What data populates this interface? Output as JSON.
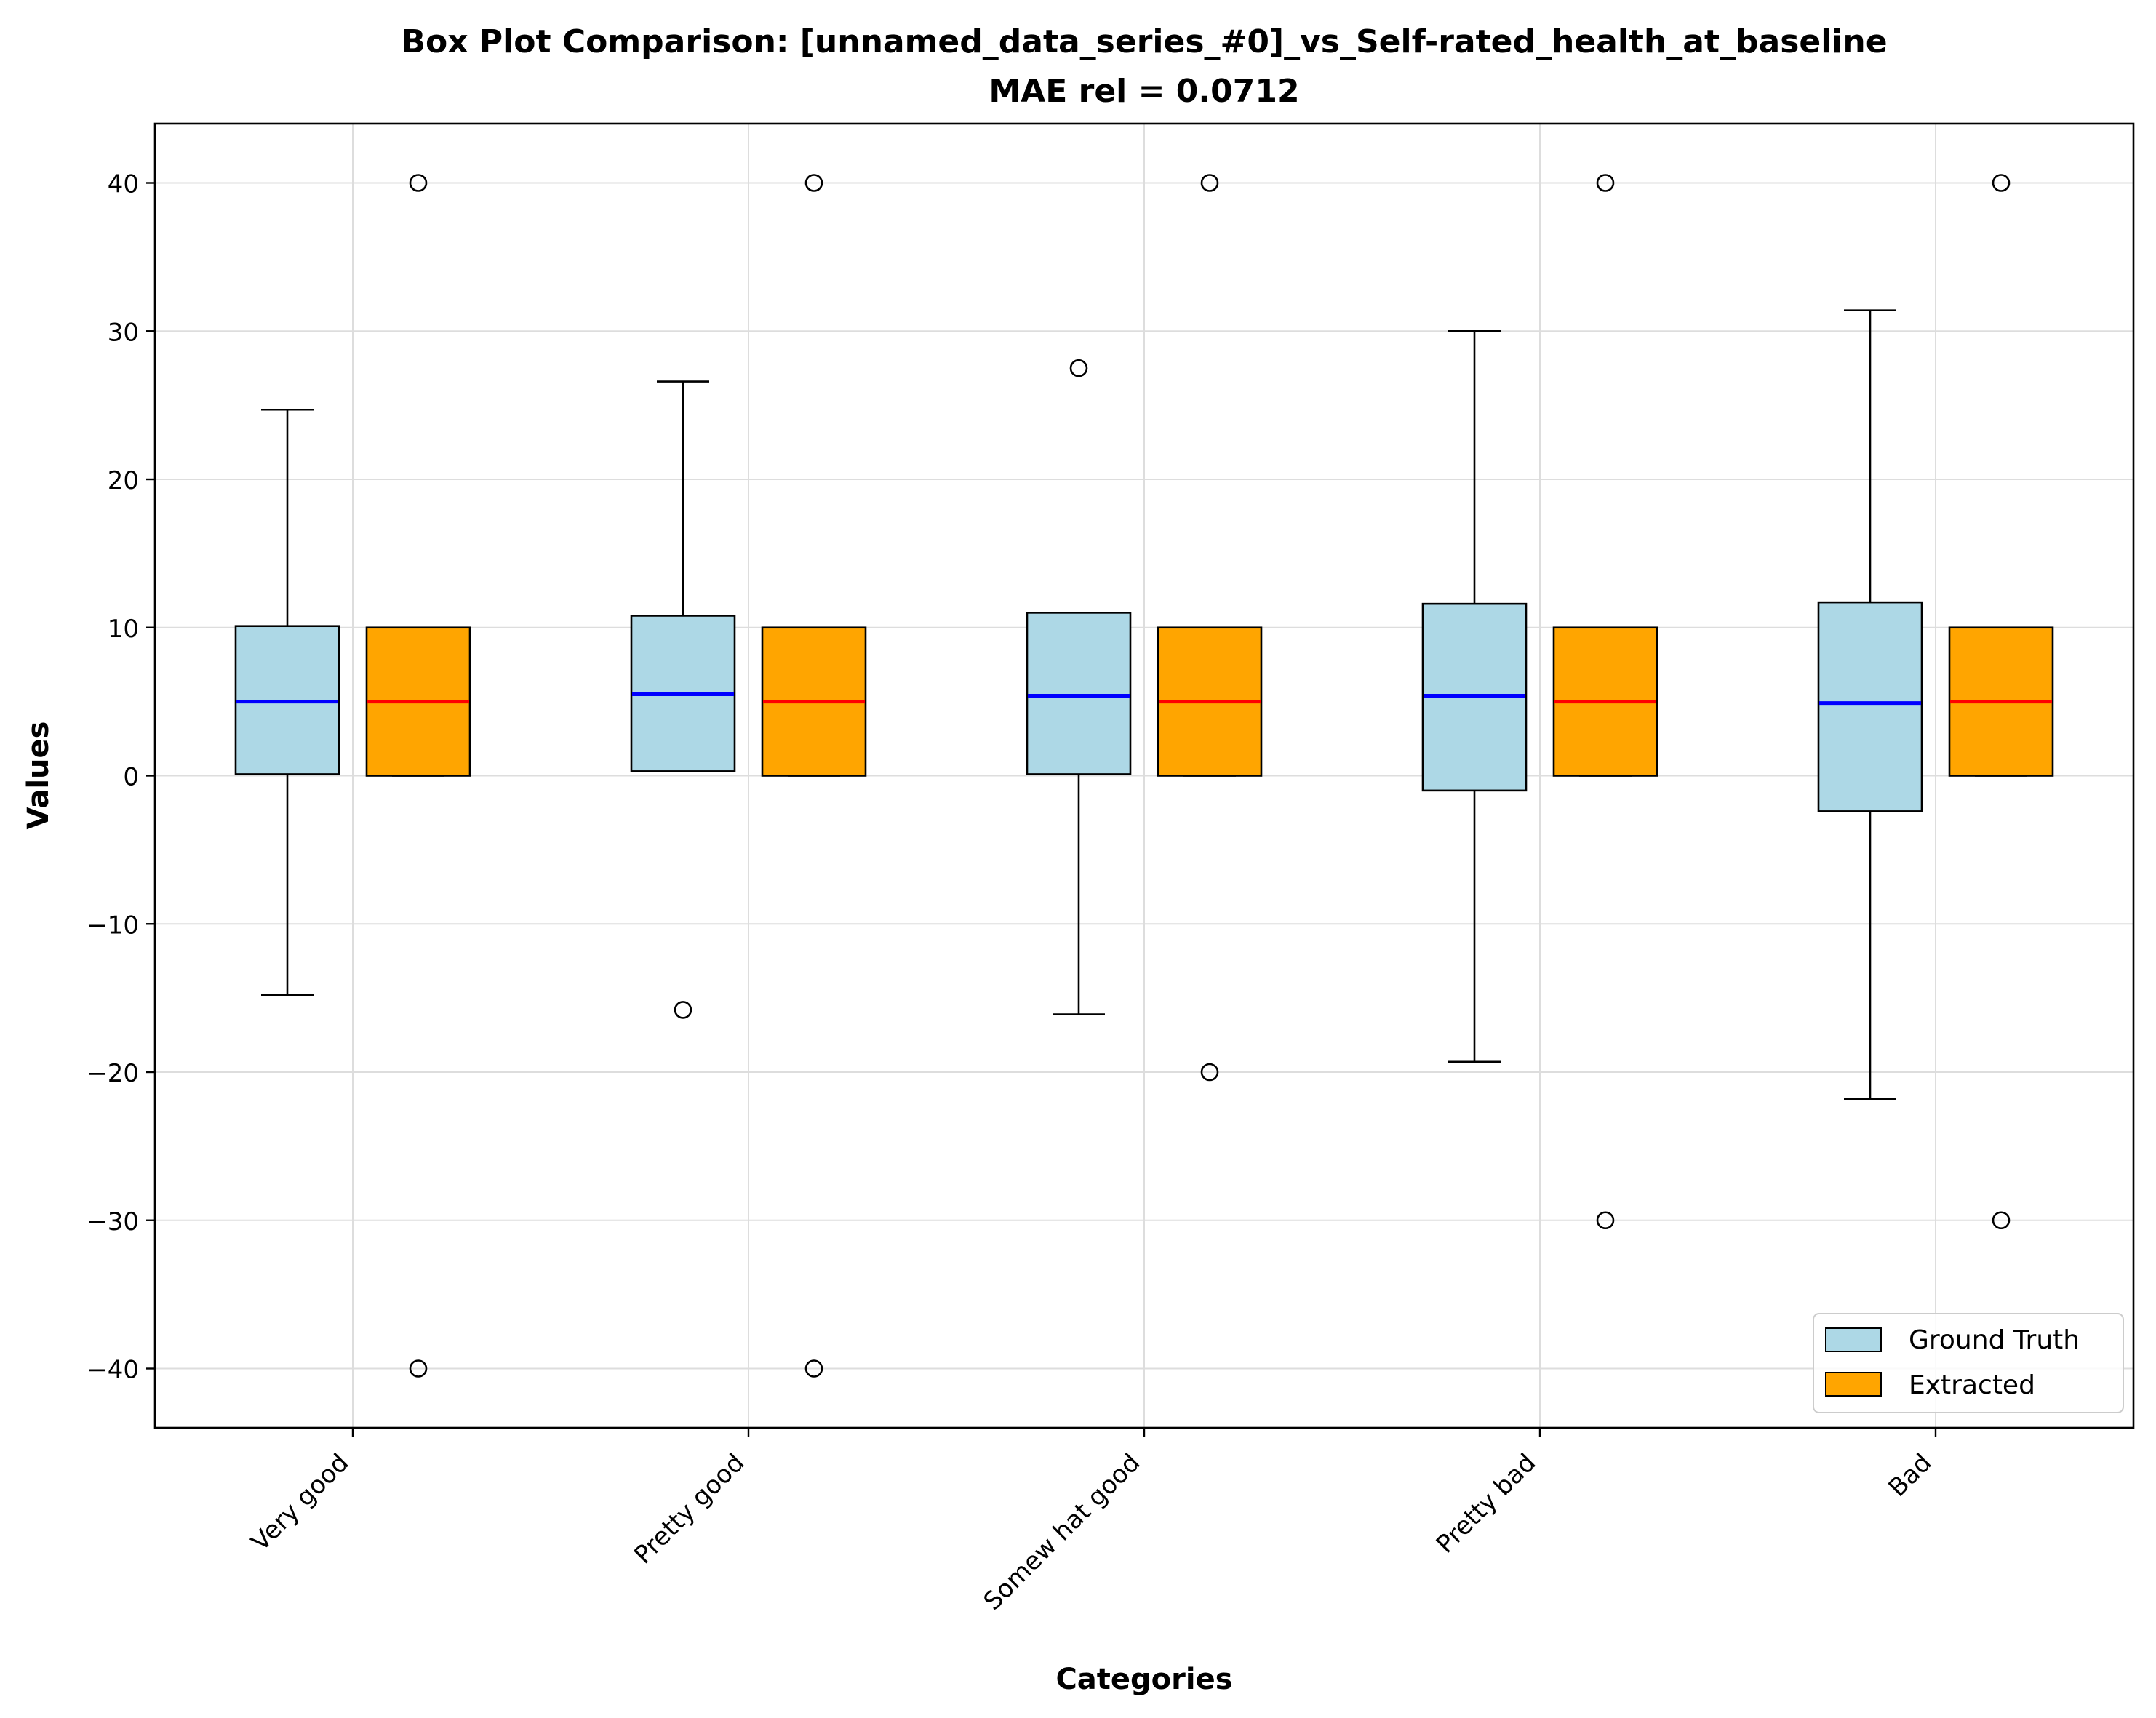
{
  "chart_data": {
    "type": "box",
    "title_line1": "Box Plot Comparison: [unnamed_data_series_#0]_vs_Self-rated_health_at_baseline",
    "title_line2": "MAE rel = 0.0712",
    "xlabel": "Categories",
    "ylabel": "Values",
    "ylim": [
      -44,
      44
    ],
    "yticks": [
      -40,
      -30,
      -20,
      -10,
      0,
      10,
      20,
      30,
      40
    ],
    "ytick_labels": [
      "−40",
      "−30",
      "−20",
      "−10",
      "0",
      "10",
      "20",
      "30",
      "40"
    ],
    "grid": true,
    "legend_position": "lower-right",
    "categories": [
      "Very good",
      "Pretty good",
      "Somew hat good",
      "Pretty bad",
      "Bad"
    ],
    "series": [
      {
        "name": "Ground Truth",
        "box_color": "#add8e6",
        "median_color": "#0000ff",
        "boxes": [
          {
            "whisker_low": -14.8,
            "q1": 0.1,
            "median": 5.0,
            "q3": 10.1,
            "whisker_high": 24.7,
            "outliers": []
          },
          {
            "whisker_low": 0.3,
            "q1": 0.3,
            "median": 5.5,
            "q3": 10.8,
            "whisker_high": 26.6,
            "outliers": [
              -15.8
            ]
          },
          {
            "whisker_low": -16.1,
            "q1": 0.1,
            "median": 5.4,
            "q3": 11.0,
            "whisker_high": 11.0,
            "outliers": [
              27.5
            ]
          },
          {
            "whisker_low": -19.3,
            "q1": -1.0,
            "median": 5.4,
            "q3": 11.6,
            "whisker_high": 30.0,
            "outliers": []
          },
          {
            "whisker_low": -21.8,
            "q1": -2.4,
            "median": 4.9,
            "q3": 11.7,
            "whisker_high": 31.4,
            "outliers": []
          }
        ]
      },
      {
        "name": "Extracted",
        "box_color": "#ffa500",
        "median_color": "#ff0000",
        "boxes": [
          {
            "whisker_low": 0,
            "q1": 0,
            "median": 5,
            "q3": 10,
            "whisker_high": 10,
            "outliers": [
              40,
              -40
            ]
          },
          {
            "whisker_low": 0,
            "q1": 0,
            "median": 5,
            "q3": 10,
            "whisker_high": 10,
            "outliers": [
              40,
              -40
            ]
          },
          {
            "whisker_low": 0,
            "q1": 0,
            "median": 5,
            "q3": 10,
            "whisker_high": 10,
            "outliers": [
              40,
              -20
            ]
          },
          {
            "whisker_low": 0,
            "q1": 0,
            "median": 5,
            "q3": 10,
            "whisker_high": 10,
            "outliers": [
              40,
              -30
            ]
          },
          {
            "whisker_low": 0,
            "q1": 0,
            "median": 5,
            "q3": 10,
            "whisker_high": 10,
            "outliers": [
              40,
              -30
            ]
          }
        ]
      }
    ]
  }
}
